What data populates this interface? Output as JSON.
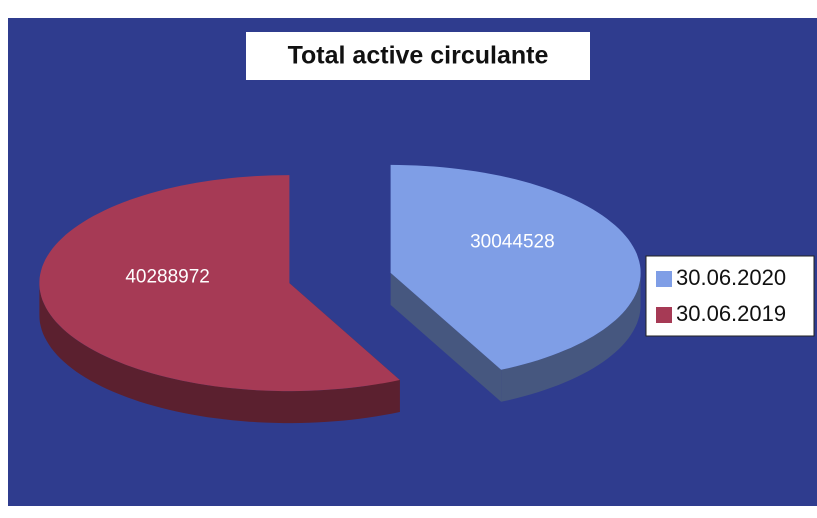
{
  "chart_data": {
    "type": "pie",
    "title": "Total active circulante",
    "categories": [
      "30.06.2020",
      "30.06.2019"
    ],
    "values": [
      30044528,
      40288972
    ],
    "colors": [
      "#7f9ee6",
      "#a63a55"
    ],
    "legend": "right"
  }
}
